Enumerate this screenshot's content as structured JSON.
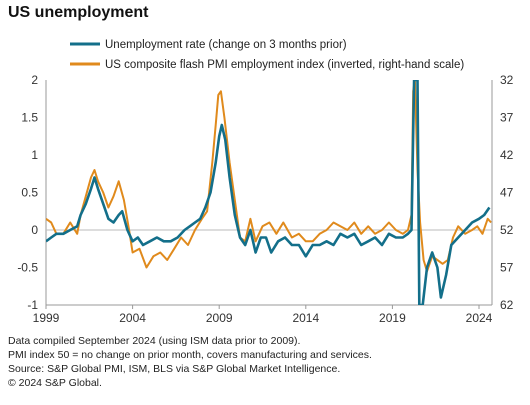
{
  "title": "US unemployment",
  "notes": [
    "Data compiled September 2024 (using ISM data prior to 2009).",
    "PMI index 50 = no change on prior month, covers manufacturing and services.",
    "Source: S&P Global PMI, ISM, BLS via S&P Global Market Intelligence.",
    "© 2024 S&P Global."
  ],
  "chart_data": {
    "type": "line",
    "title": "US unemployment",
    "xlabel": "",
    "ylabel": "",
    "x_ticks": [
      "1999",
      "2004",
      "2009",
      "2014",
      "2019",
      "2024"
    ],
    "x_range": [
      1999.0,
      2024.75
    ],
    "y_left": {
      "ticks": [
        "2",
        "1.5",
        "1",
        "0.5",
        "0",
        "-0.5",
        "-1"
      ],
      "range": [
        -1,
        2
      ]
    },
    "y_right": {
      "ticks": [
        "32",
        "37",
        "42",
        "47",
        "52",
        "57",
        "62"
      ],
      "range": [
        62,
        32
      ],
      "inverted": true
    },
    "grid": "horizontal-zero-line",
    "legend": "top",
    "series": [
      {
        "name": "Unemployment rate (change on 3 months prior)",
        "color": "#136f8a",
        "axis": "left",
        "points": [
          [
            1999.0,
            -0.15
          ],
          [
            1999.3,
            -0.1
          ],
          [
            1999.6,
            -0.05
          ],
          [
            2000.0,
            -0.05
          ],
          [
            2000.4,
            0.0
          ],
          [
            2000.8,
            0.05
          ],
          [
            2001.0,
            0.2
          ],
          [
            2001.3,
            0.35
          ],
          [
            2001.6,
            0.55
          ],
          [
            2001.8,
            0.7
          ],
          [
            2002.0,
            0.55
          ],
          [
            2002.3,
            0.35
          ],
          [
            2002.6,
            0.15
          ],
          [
            2002.9,
            0.1
          ],
          [
            2003.2,
            0.2
          ],
          [
            2003.4,
            0.25
          ],
          [
            2003.7,
            0.0
          ],
          [
            2004.0,
            -0.15
          ],
          [
            2004.3,
            -0.1
          ],
          [
            2004.6,
            -0.2
          ],
          [
            2005.0,
            -0.15
          ],
          [
            2005.4,
            -0.1
          ],
          [
            2005.8,
            -0.15
          ],
          [
            2006.2,
            -0.15
          ],
          [
            2006.6,
            -0.1
          ],
          [
            2007.0,
            0.0
          ],
          [
            2007.3,
            0.05
          ],
          [
            2007.6,
            0.1
          ],
          [
            2007.9,
            0.15
          ],
          [
            2008.2,
            0.3
          ],
          [
            2008.5,
            0.5
          ],
          [
            2008.8,
            0.9
          ],
          [
            2009.0,
            1.25
          ],
          [
            2009.15,
            1.4
          ],
          [
            2009.35,
            1.2
          ],
          [
            2009.6,
            0.7
          ],
          [
            2009.9,
            0.2
          ],
          [
            2010.2,
            -0.1
          ],
          [
            2010.5,
            -0.2
          ],
          [
            2010.8,
            0.0
          ],
          [
            2011.1,
            -0.3
          ],
          [
            2011.4,
            -0.1
          ],
          [
            2011.7,
            -0.1
          ],
          [
            2012.0,
            -0.3
          ],
          [
            2012.4,
            -0.15
          ],
          [
            2012.8,
            -0.1
          ],
          [
            2013.2,
            -0.2
          ],
          [
            2013.6,
            -0.2
          ],
          [
            2014.0,
            -0.35
          ],
          [
            2014.4,
            -0.2
          ],
          [
            2014.8,
            -0.2
          ],
          [
            2015.2,
            -0.15
          ],
          [
            2015.6,
            -0.2
          ],
          [
            2016.0,
            -0.05
          ],
          [
            2016.4,
            -0.1
          ],
          [
            2016.8,
            -0.05
          ],
          [
            2017.2,
            -0.2
          ],
          [
            2017.6,
            -0.15
          ],
          [
            2018.0,
            -0.1
          ],
          [
            2018.4,
            -0.2
          ],
          [
            2018.8,
            -0.05
          ],
          [
            2019.2,
            -0.1
          ],
          [
            2019.6,
            -0.1
          ],
          [
            2019.9,
            -0.05
          ],
          [
            2020.1,
            0.0
          ],
          [
            2020.25,
            2.0
          ],
          [
            2020.45,
            2.0
          ],
          [
            2020.55,
            -1.0
          ],
          [
            2020.75,
            -1.0
          ],
          [
            2021.0,
            -0.5
          ],
          [
            2021.3,
            -0.3
          ],
          [
            2021.6,
            -0.5
          ],
          [
            2021.8,
            -0.9
          ],
          [
            2022.1,
            -0.6
          ],
          [
            2022.4,
            -0.2
          ],
          [
            2022.8,
            -0.1
          ],
          [
            2023.2,
            0.0
          ],
          [
            2023.6,
            0.1
          ],
          [
            2024.0,
            0.15
          ],
          [
            2024.3,
            0.2
          ],
          [
            2024.6,
            0.3
          ]
        ]
      },
      {
        "name": "US composite flash PMI employment index (inverted, right-hand scale)",
        "color": "#e08a1c",
        "axis": "right",
        "points": [
          [
            1999.0,
            50.5
          ],
          [
            1999.3,
            51.0
          ],
          [
            1999.6,
            52.5
          ],
          [
            2000.0,
            52.5
          ],
          [
            2000.4,
            51.0
          ],
          [
            2000.8,
            52.5
          ],
          [
            2001.0,
            50.0
          ],
          [
            2001.3,
            47.5
          ],
          [
            2001.6,
            45.0
          ],
          [
            2001.8,
            44.0
          ],
          [
            2002.0,
            45.5
          ],
          [
            2002.3,
            47.0
          ],
          [
            2002.6,
            49.0
          ],
          [
            2002.9,
            47.5
          ],
          [
            2003.2,
            45.5
          ],
          [
            2003.5,
            48.0
          ],
          [
            2003.8,
            52.0
          ],
          [
            2004.0,
            55.0
          ],
          [
            2004.4,
            54.5
          ],
          [
            2004.8,
            57.0
          ],
          [
            2005.2,
            55.5
          ],
          [
            2005.6,
            55.0
          ],
          [
            2006.0,
            56.0
          ],
          [
            2006.4,
            54.5
          ],
          [
            2006.8,
            53.0
          ],
          [
            2007.2,
            54.0
          ],
          [
            2007.6,
            52.0
          ],
          [
            2008.0,
            50.5
          ],
          [
            2008.3,
            49.5
          ],
          [
            2008.6,
            43.0
          ],
          [
            2008.8,
            38.0
          ],
          [
            2008.95,
            34.0
          ],
          [
            2009.1,
            33.5
          ],
          [
            2009.3,
            37.0
          ],
          [
            2009.6,
            43.0
          ],
          [
            2009.9,
            48.0
          ],
          [
            2010.2,
            53.0
          ],
          [
            2010.5,
            53.5
          ],
          [
            2010.8,
            50.5
          ],
          [
            2011.1,
            53.5
          ],
          [
            2011.5,
            51.5
          ],
          [
            2011.9,
            51.0
          ],
          [
            2012.3,
            52.5
          ],
          [
            2012.7,
            51.0
          ],
          [
            2013.2,
            53.0
          ],
          [
            2013.6,
            52.5
          ],
          [
            2014.0,
            53.5
          ],
          [
            2014.4,
            53.5
          ],
          [
            2014.8,
            52.5
          ],
          [
            2015.2,
            52.0
          ],
          [
            2015.6,
            51.0
          ],
          [
            2016.0,
            51.5
          ],
          [
            2016.4,
            52.0
          ],
          [
            2016.8,
            51.0
          ],
          [
            2017.2,
            52.5
          ],
          [
            2017.6,
            51.5
          ],
          [
            2018.0,
            52.5
          ],
          [
            2018.4,
            52.0
          ],
          [
            2018.8,
            51.0
          ],
          [
            2019.2,
            52.0
          ],
          [
            2019.6,
            52.5
          ],
          [
            2019.9,
            52.0
          ],
          [
            2020.1,
            50.0
          ],
          [
            2020.2,
            33.5
          ],
          [
            2020.3,
            32.0
          ],
          [
            2020.45,
            44.0
          ],
          [
            2020.6,
            51.0
          ],
          [
            2020.8,
            56.0
          ],
          [
            2021.0,
            57.5
          ],
          [
            2021.3,
            55.5
          ],
          [
            2021.6,
            56.0
          ],
          [
            2021.9,
            56.5
          ],
          [
            2022.2,
            56.0
          ],
          [
            2022.5,
            53.0
          ],
          [
            2022.8,
            51.5
          ],
          [
            2023.2,
            52.5
          ],
          [
            2023.6,
            52.0
          ],
          [
            2023.9,
            51.5
          ],
          [
            2024.2,
            52.5
          ],
          [
            2024.5,
            50.5
          ],
          [
            2024.7,
            51.0
          ]
        ]
      }
    ]
  }
}
